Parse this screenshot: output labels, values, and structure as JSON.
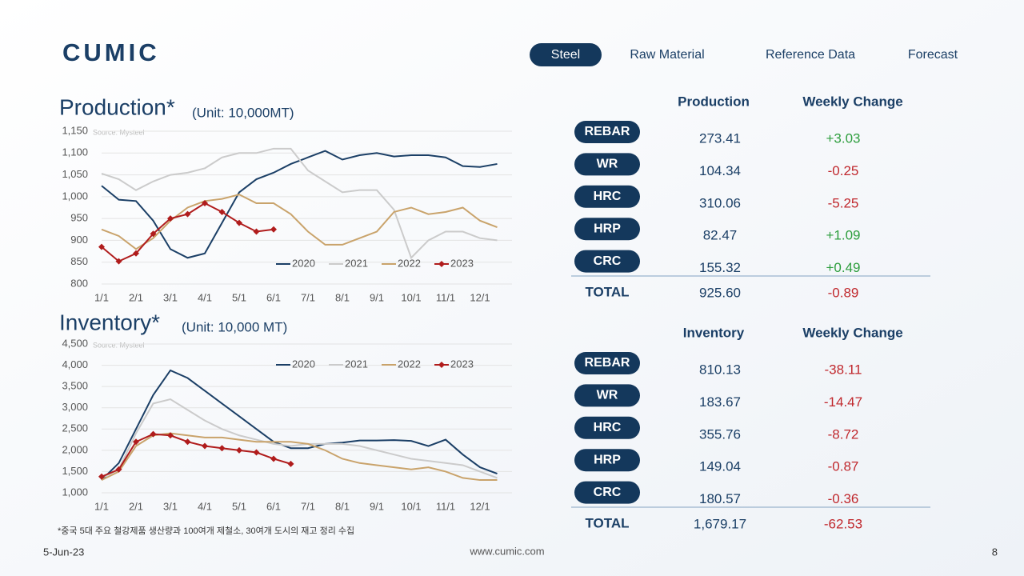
{
  "header": {
    "logo": "CUMIC",
    "tabs": [
      {
        "label": "Steel",
        "active": true
      },
      {
        "label": "Raw Material",
        "active": false
      },
      {
        "label": "Reference Data",
        "active": false
      },
      {
        "label": "Forecast",
        "active": false
      }
    ]
  },
  "chart_data": [
    {
      "type": "line",
      "title": "Production*",
      "subtitle": "(Unit: 10,000MT)",
      "annotation": "Source: Mysteel",
      "categories": [
        "1/1",
        null,
        "2/1",
        null,
        "3/1",
        null,
        "4/1",
        null,
        "5/1",
        null,
        "6/1",
        null,
        "7/1",
        null,
        "8/1",
        null,
        "9/1",
        null,
        "10/1",
        null,
        "11/1",
        null,
        "12/1",
        null
      ],
      "ylim": [
        800,
        1150
      ],
      "yticks": [
        800,
        850,
        900,
        950,
        {
          "value": 1000,
          "label": "1,000"
        },
        {
          "value": 1050,
          "label": "1,050"
        },
        {
          "value": 1100,
          "label": "1,100"
        },
        {
          "value": 1150,
          "label": "1,150"
        }
      ],
      "grid": true,
      "legend": "lower-right",
      "series": [
        {
          "name": "2020",
          "color": "#1b3f66",
          "values": [
            1025,
            993,
            990,
            945,
            880,
            860,
            870,
            940,
            1010,
            1040,
            1055,
            1075,
            1090,
            1105,
            1085,
            1095,
            1100,
            1092,
            1095,
            1095,
            1090,
            1070,
            1068,
            1075
          ]
        },
        {
          "name": "2021",
          "color": "#cbcbcb",
          "values": [
            1053,
            1040,
            1015,
            1035,
            1050,
            1055,
            1065,
            1090,
            1100,
            1100,
            1110,
            1110,
            1060,
            1035,
            1010,
            1015,
            1015,
            970,
            860,
            900,
            920,
            920,
            905,
            900
          ]
        },
        {
          "name": "2022",
          "color": "#c9a36b",
          "values": [
            925,
            910,
            880,
            905,
            945,
            975,
            990,
            995,
            1005,
            985,
            985,
            960,
            920,
            890,
            890,
            905,
            920,
            965,
            975,
            960,
            965,
            975,
            945,
            930
          ]
        },
        {
          "name": "2023",
          "color": "#b01c1c",
          "marker": "diamond",
          "values": [
            885,
            852,
            870,
            915,
            950,
            960,
            985,
            965,
            940,
            920,
            925,
            null,
            null,
            null,
            null,
            null,
            null,
            null,
            null,
            null,
            null,
            null,
            null,
            null
          ]
        }
      ]
    },
    {
      "type": "line",
      "title": "Inventory*",
      "subtitle": "(Unit: 10,000 MT)",
      "annotation": "Source: Mysteel",
      "categories": [
        "1/1",
        null,
        "2/1",
        null,
        "3/1",
        null,
        "4/1",
        null,
        "5/1",
        null,
        "6/1",
        null,
        "7/1",
        null,
        "8/1",
        null,
        "9/1",
        null,
        "10/1",
        null,
        "11/1",
        null,
        "12/1",
        null
      ],
      "ylim": [
        1000,
        4500
      ],
      "yticks": [
        {
          "value": 1000,
          "label": "1,000"
        },
        {
          "value": 1500,
          "label": "1,500"
        },
        {
          "value": 2000,
          "label": "2,000"
        },
        {
          "value": 2500,
          "label": "2,500"
        },
        {
          "value": 3000,
          "label": "3,000"
        },
        {
          "value": 3500,
          "label": "3,500"
        },
        {
          "value": 4000,
          "label": "4,000"
        },
        {
          "value": 4500,
          "label": "4,500"
        }
      ],
      "grid": true,
      "legend": "upper-right",
      "series": [
        {
          "name": "2020",
          "color": "#1b3f66",
          "values": [
            1300,
            1700,
            2500,
            3300,
            3880,
            3700,
            3400,
            3100,
            2800,
            2500,
            2200,
            2050,
            2050,
            2150,
            2180,
            2230,
            2230,
            2240,
            2220,
            2100,
            2250,
            1900,
            1600,
            1450
          ]
        },
        {
          "name": "2021",
          "color": "#cbcbcb",
          "values": [
            1350,
            1550,
            2400,
            3100,
            3200,
            2950,
            2700,
            2500,
            2350,
            2250,
            2150,
            2100,
            2150,
            2150,
            2150,
            2100,
            2000,
            1900,
            1800,
            1750,
            1700,
            1650,
            1500,
            1350
          ]
        },
        {
          "name": "2022",
          "color": "#c9a36b",
          "values": [
            1300,
            1500,
            2100,
            2350,
            2400,
            2350,
            2300,
            2300,
            2250,
            2200,
            2200,
            2200,
            2150,
            2000,
            1800,
            1700,
            1650,
            1600,
            1550,
            1600,
            1500,
            1350,
            1300,
            1300
          ]
        },
        {
          "name": "2023",
          "color": "#b01c1c",
          "marker": "diamond",
          "values": [
            1380,
            1550,
            2200,
            2380,
            2350,
            2200,
            2100,
            2050,
            2000,
            1950,
            1800,
            1680,
            null,
            null,
            null,
            null,
            null,
            null,
            null,
            null,
            null,
            null,
            null,
            null
          ]
        }
      ]
    }
  ],
  "tables": [
    {
      "headers": [
        "Production",
        "Weekly Change"
      ],
      "rows": [
        [
          "REBAR",
          "273.41",
          "+3.03"
        ],
        [
          "WR",
          "104.34",
          "-0.25"
        ],
        [
          "HRC",
          "310.06",
          "-5.25"
        ],
        [
          "HRP",
          "82.47",
          "+1.09"
        ],
        [
          "CRC",
          "155.32",
          "+0.49"
        ]
      ],
      "total": [
        "TOTAL",
        "925.60",
        "-0.89"
      ]
    },
    {
      "headers": [
        "Inventory",
        "Weekly Change"
      ],
      "rows": [
        [
          "REBAR",
          "810.13",
          "-38.11"
        ],
        [
          "WR",
          "183.67",
          "-14.47"
        ],
        [
          "HRC",
          "355.76",
          "-8.72"
        ],
        [
          "HRP",
          "149.04",
          "-0.87"
        ],
        [
          "CRC",
          "180.57",
          "-0.36"
        ]
      ],
      "total": [
        "TOTAL",
        "1,679.17",
        "-62.53"
      ]
    }
  ],
  "footer": {
    "note": "*중국 5대 주요 철강제품 생산량과 100여개 제철소, 30여개 도시의 재고 정리 수집",
    "date": "5-Jun-23",
    "url": "www.cumic.com",
    "page": "8"
  }
}
